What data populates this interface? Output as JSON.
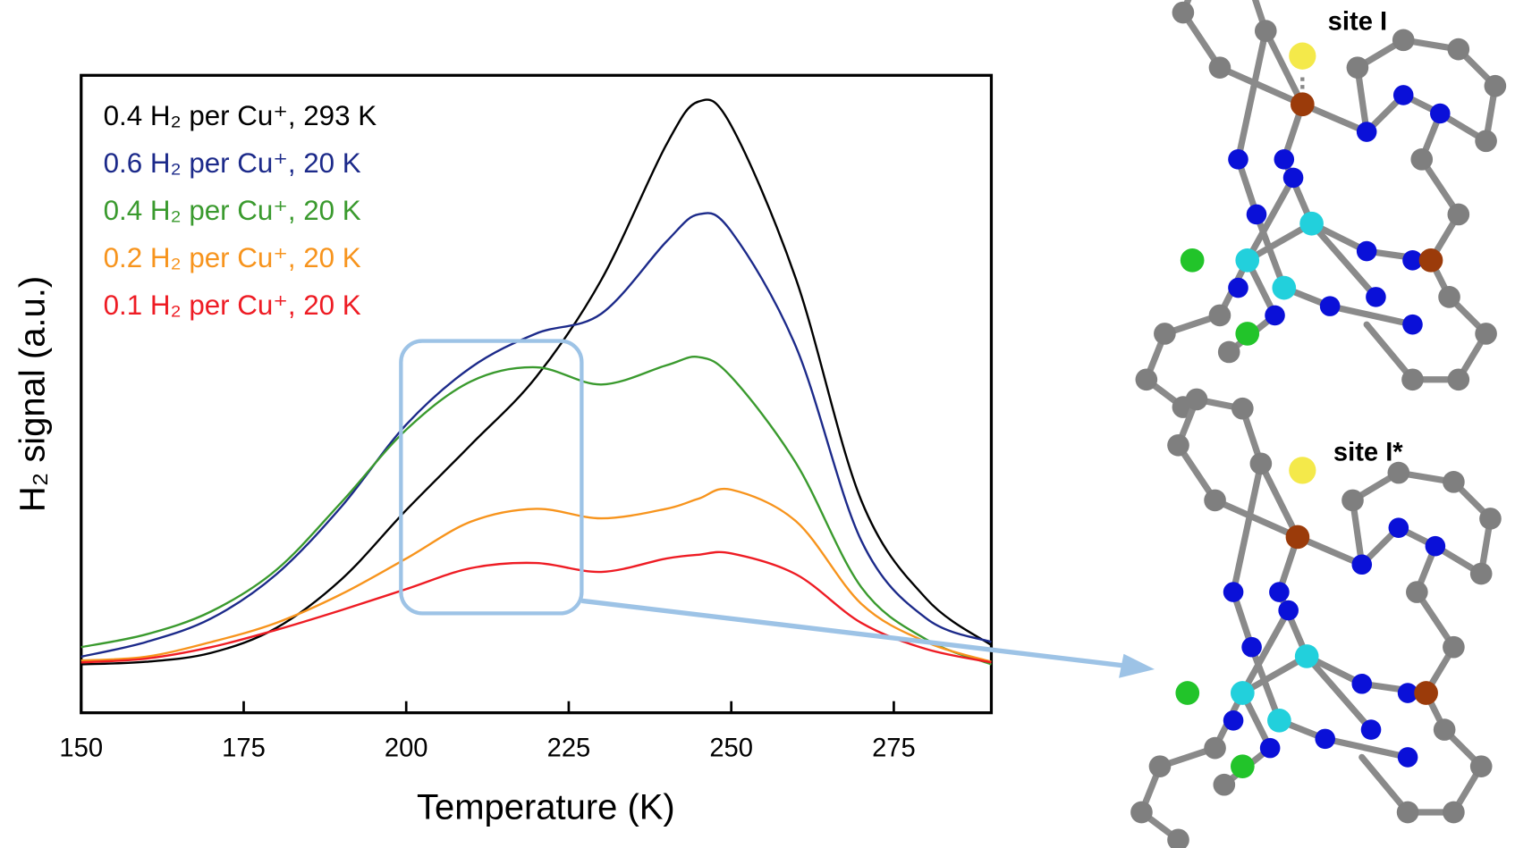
{
  "chart_data": {
    "type": "line",
    "x_label": "Temperature (K)",
    "y_label": "H₂ signal (a.u.)",
    "x": [
      150,
      160,
      170,
      180,
      190,
      200,
      210,
      220,
      230,
      240,
      245,
      250,
      260,
      270,
      280,
      290
    ],
    "series": [
      {
        "name": "0.4 H₂ per Cu⁺, 293 K",
        "color": "#000000",
        "values": [
          7.6,
          8.0,
          9.4,
          13.3,
          20.9,
          31.8,
          42.1,
          52.7,
          67.9,
          89.1,
          95.9,
          92.1,
          67.9,
          33.3,
          17.9,
          10.6
        ]
      },
      {
        "name": "0.6 H₂ per Cu⁺, 20 K",
        "color": "#1c2a8a",
        "values": [
          8.8,
          11.1,
          14.8,
          21.7,
          32.3,
          45.2,
          54.2,
          59.5,
          62.6,
          73.9,
          78.2,
          75.5,
          57.3,
          27.0,
          14.8,
          11.1
        ]
      },
      {
        "name": "0.4 H₂ per Cu⁺, 20 K",
        "color": "#3a9a2e",
        "values": [
          10.3,
          12.3,
          15.9,
          22.4,
          33.0,
          44.4,
          52.0,
          54.2,
          51.5,
          54.5,
          55.8,
          52.7,
          39.1,
          19.7,
          11.5,
          7.6
        ]
      },
      {
        "name": "0.2 H₂ per Cu⁺, 20 K",
        "color": "#f7941d",
        "values": [
          8.2,
          8.8,
          11.1,
          14.1,
          18.6,
          24.2,
          30.0,
          32.0,
          30.5,
          32.0,
          33.6,
          35.0,
          30.0,
          17.1,
          11.1,
          8.0
        ]
      },
      {
        "name": "0.1 H₂ per Cu⁺, 20 K",
        "color": "#ee1c24",
        "values": [
          7.9,
          8.5,
          10.3,
          13.0,
          16.1,
          19.4,
          22.7,
          23.5,
          22.1,
          24.2,
          24.8,
          25.0,
          21.7,
          14.1,
          10.0,
          7.9
        ]
      }
    ],
    "xlim": [
      150,
      290
    ],
    "xticks": [
      150,
      175,
      200,
      225,
      250,
      275
    ],
    "ylim": [
      0,
      100
    ]
  },
  "structures": {
    "top_label": "site I",
    "bottom_label": "site I*"
  }
}
